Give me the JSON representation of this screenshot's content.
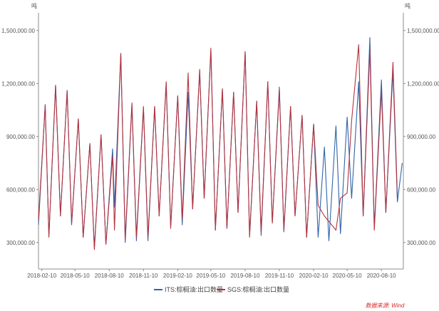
{
  "chart_data": {
    "type": "line",
    "left_unit": "吨",
    "right_unit": "吨",
    "y_ticks": [
      "1,500,000.00",
      "1,200,000.00",
      "900,000.00",
      "600,000.00",
      "300,000.00"
    ],
    "y_tick_values": [
      1500000,
      1200000,
      900000,
      600000,
      300000
    ],
    "ylim": [
      150000,
      1600000
    ],
    "x_ticks": [
      "2018-02-10",
      "2018-05-10",
      "2018-08-10",
      "2018-11-10",
      "2019-02-10",
      "2019-05-10",
      "2019-08-10",
      "2019-11-10",
      "2020-02-10",
      "2020-05-10",
      "2020-08-10"
    ],
    "legend_position": "bottom",
    "source": "数据来源: Wind",
    "colors": {
      "ITS": "#2f64ab",
      "SGS": "#b5333d"
    },
    "series": [
      {
        "name": "ITS:棕榈油:出口数量",
        "color": "#2f64ab",
        "points": [
          [
            "2018-02-01",
            400000
          ],
          [
            "2018-02-19",
            1080000
          ],
          [
            "2018-03-01",
            340000
          ],
          [
            "2018-03-19",
            1190000
          ],
          [
            "2018-04-01",
            450000
          ],
          [
            "2018-04-19",
            1160000
          ],
          [
            "2018-05-01",
            400000
          ],
          [
            "2018-05-19",
            1000000
          ],
          [
            "2018-06-01",
            330000
          ],
          [
            "2018-06-19",
            860000
          ],
          [
            "2018-07-01",
            270000
          ],
          [
            "2018-07-19",
            910000
          ],
          [
            "2018-08-01",
            290000
          ],
          [
            "2018-08-19",
            830000
          ],
          [
            "2018-08-24",
            500000
          ],
          [
            "2018-09-10",
            1370000
          ],
          [
            "2018-09-22",
            300000
          ],
          [
            "2018-10-10",
            1080000
          ],
          [
            "2018-10-22",
            310000
          ],
          [
            "2018-11-10",
            1060000
          ],
          [
            "2018-11-22",
            310000
          ],
          [
            "2018-12-10",
            1070000
          ],
          [
            "2018-12-22",
            450000
          ],
          [
            "2019-01-10",
            1200000
          ],
          [
            "2019-01-22",
            390000
          ],
          [
            "2019-02-10",
            1130000
          ],
          [
            "2019-02-22",
            400000
          ],
          [
            "2019-03-10",
            1150000
          ],
          [
            "2019-03-22",
            490000
          ],
          [
            "2019-04-10",
            1270000
          ],
          [
            "2019-04-22",
            550000
          ],
          [
            "2019-05-10",
            1390000
          ],
          [
            "2019-05-22",
            370000
          ],
          [
            "2019-06-10",
            1170000
          ],
          [
            "2019-06-22",
            380000
          ],
          [
            "2019-07-10",
            1150000
          ],
          [
            "2019-07-22",
            470000
          ],
          [
            "2019-08-10",
            1380000
          ],
          [
            "2019-08-22",
            340000
          ],
          [
            "2019-09-10",
            1100000
          ],
          [
            "2019-09-22",
            340000
          ],
          [
            "2019-10-10",
            1210000
          ],
          [
            "2019-10-22",
            410000
          ],
          [
            "2019-11-10",
            1180000
          ],
          [
            "2019-11-22",
            360000
          ],
          [
            "2019-12-10",
            1070000
          ],
          [
            "2019-12-22",
            450000
          ],
          [
            "2020-01-10",
            1020000
          ],
          [
            "2020-01-22",
            330000
          ],
          [
            "2020-02-10",
            970000
          ],
          [
            "2020-02-22",
            330000
          ],
          [
            "2020-03-10",
            840000
          ],
          [
            "2020-03-22",
            310000
          ],
          [
            "2020-04-10",
            960000
          ],
          [
            "2020-04-22",
            350000
          ],
          [
            "2020-05-10",
            1010000
          ],
          [
            "2020-05-22",
            550000
          ],
          [
            "2020-06-10",
            1210000
          ],
          [
            "2020-06-22",
            450000
          ],
          [
            "2020-07-10",
            1460000
          ],
          [
            "2020-07-22",
            380000
          ],
          [
            "2020-08-10",
            1220000
          ],
          [
            "2020-08-22",
            470000
          ],
          [
            "2020-09-10",
            1270000
          ],
          [
            "2020-09-22",
            530000
          ],
          [
            "2020-10-05",
            750000
          ]
        ]
      },
      {
        "name": "SGS:棕榈油:出口数量",
        "color": "#b5333d",
        "points": [
          [
            "2018-02-01",
            430000
          ],
          [
            "2018-02-19",
            1080000
          ],
          [
            "2018-03-01",
            330000
          ],
          [
            "2018-03-19",
            1190000
          ],
          [
            "2018-04-01",
            450000
          ],
          [
            "2018-04-19",
            1160000
          ],
          [
            "2018-05-01",
            410000
          ],
          [
            "2018-05-19",
            1000000
          ],
          [
            "2018-06-01",
            330000
          ],
          [
            "2018-06-19",
            860000
          ],
          [
            "2018-07-01",
            260000
          ],
          [
            "2018-07-19",
            910000
          ],
          [
            "2018-08-01",
            290000
          ],
          [
            "2018-08-19",
            790000
          ],
          [
            "2018-08-24",
            370000
          ],
          [
            "2018-09-10",
            1370000
          ],
          [
            "2018-09-22",
            320000
          ],
          [
            "2018-10-10",
            1090000
          ],
          [
            "2018-10-22",
            330000
          ],
          [
            "2018-11-10",
            1070000
          ],
          [
            "2018-11-22",
            330000
          ],
          [
            "2018-12-10",
            1070000
          ],
          [
            "2018-12-22",
            450000
          ],
          [
            "2019-01-10",
            1210000
          ],
          [
            "2019-01-22",
            380000
          ],
          [
            "2019-02-10",
            1130000
          ],
          [
            "2019-02-22",
            430000
          ],
          [
            "2019-03-10",
            1260000
          ],
          [
            "2019-03-22",
            490000
          ],
          [
            "2019-04-10",
            1280000
          ],
          [
            "2019-04-22",
            550000
          ],
          [
            "2019-05-10",
            1400000
          ],
          [
            "2019-05-22",
            370000
          ],
          [
            "2019-06-10",
            1170000
          ],
          [
            "2019-06-22",
            380000
          ],
          [
            "2019-07-10",
            1150000
          ],
          [
            "2019-07-22",
            470000
          ],
          [
            "2019-08-10",
            1380000
          ],
          [
            "2019-08-22",
            330000
          ],
          [
            "2019-09-10",
            1100000
          ],
          [
            "2019-09-22",
            360000
          ],
          [
            "2019-10-10",
            1210000
          ],
          [
            "2019-10-22",
            410000
          ],
          [
            "2019-11-10",
            1160000
          ],
          [
            "2019-11-22",
            370000
          ],
          [
            "2019-12-10",
            1070000
          ],
          [
            "2019-12-22",
            450000
          ],
          [
            "2020-01-10",
            1020000
          ],
          [
            "2020-01-22",
            330000
          ],
          [
            "2020-02-10",
            970000
          ],
          [
            "2020-02-22",
            510000
          ],
          [
            "2020-03-10",
            450000
          ],
          [
            "2020-04-10",
            370000
          ],
          [
            "2020-04-22",
            550000
          ],
          [
            "2020-05-10",
            580000
          ],
          [
            "2020-05-22",
            990000
          ],
          [
            "2020-06-10",
            1420000
          ],
          [
            "2020-06-22",
            450000
          ],
          [
            "2020-07-10",
            1390000
          ],
          [
            "2020-07-22",
            370000
          ],
          [
            "2020-08-10",
            1160000
          ],
          [
            "2020-08-22",
            470000
          ],
          [
            "2020-09-10",
            1320000
          ],
          [
            "2020-09-22",
            560000
          ]
        ]
      }
    ]
  }
}
